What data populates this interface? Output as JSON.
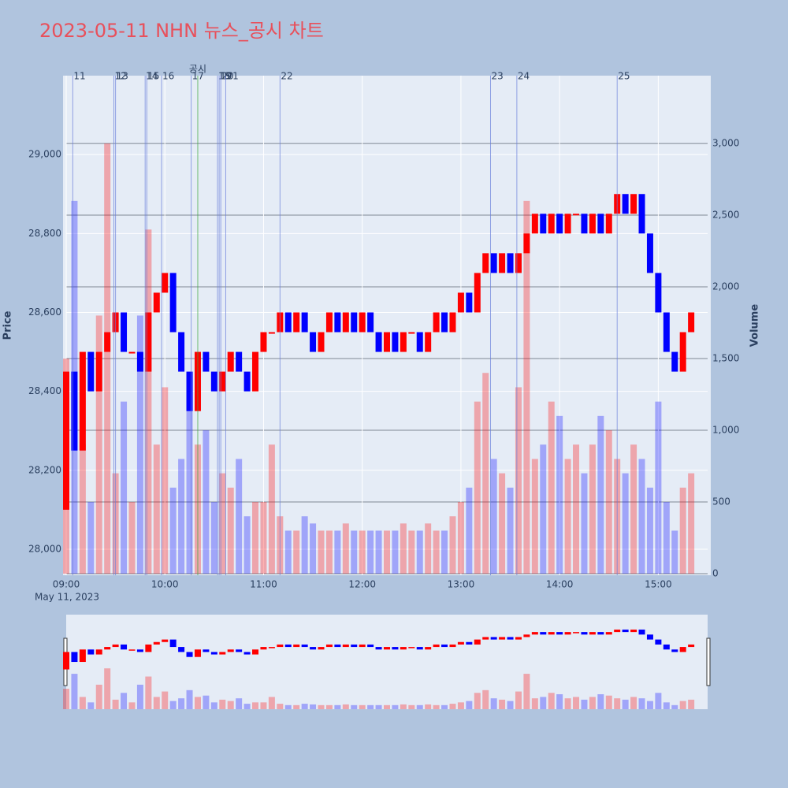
{
  "chart_data": {
    "type": "candlestick",
    "title": "2023-05-11 NHN 뉴스_공시 차트",
    "y_label": "Price",
    "y2_label": "Volume",
    "x_date_label": "May 11, 2023",
    "x": [
      "09:00",
      "09:05",
      "09:10",
      "09:15",
      "09:20",
      "09:25",
      "09:30",
      "09:35",
      "09:40",
      "09:45",
      "09:50",
      "09:55",
      "10:00",
      "10:05",
      "10:10",
      "10:15",
      "10:20",
      "10:25",
      "10:30",
      "10:35",
      "10:40",
      "10:45",
      "10:50",
      "10:55",
      "11:00",
      "11:05",
      "11:10",
      "11:15",
      "11:20",
      "11:25",
      "11:30",
      "11:35",
      "11:40",
      "11:45",
      "11:50",
      "11:55",
      "12:00",
      "12:05",
      "12:10",
      "12:15",
      "12:20",
      "12:25",
      "12:30",
      "12:35",
      "12:40",
      "12:45",
      "12:50",
      "12:55",
      "13:00",
      "13:05",
      "13:10",
      "13:15",
      "13:20",
      "13:25",
      "13:30",
      "13:35",
      "13:40",
      "13:45",
      "13:50",
      "13:55",
      "14:00",
      "14:05",
      "14:10",
      "14:15",
      "14:20",
      "14:25",
      "14:30",
      "14:35",
      "14:40",
      "14:45",
      "14:50",
      "14:55",
      "15:00",
      "15:05",
      "15:10",
      "15:15",
      "15:20"
    ],
    "open": [
      28100,
      28450,
      28250,
      28500,
      28400,
      28500,
      28550,
      28600,
      28500,
      28500,
      28450,
      28600,
      28650,
      28700,
      28550,
      28450,
      28350,
      28500,
      28450,
      28400,
      28450,
      28500,
      28450,
      28400,
      28500,
      28550,
      28550,
      28600,
      28550,
      28600,
      28550,
      28500,
      28550,
      28600,
      28550,
      28600,
      28550,
      28600,
      28550,
      28500,
      28550,
      28500,
      28550,
      28550,
      28500,
      28550,
      28600,
      28550,
      28600,
      28650,
      28600,
      28700,
      28750,
      28700,
      28750,
      28700,
      28750,
      28800,
      28850,
      28800,
      28850,
      28800,
      28850,
      28850,
      28800,
      28850,
      28800,
      28850,
      28900,
      28850,
      28900,
      28800,
      28700,
      28600,
      28500,
      28450,
      28550
    ],
    "close": [
      28450,
      28250,
      28500,
      28400,
      28500,
      28550,
      28600,
      28500,
      28500,
      28450,
      28600,
      28650,
      28700,
      28550,
      28450,
      28350,
      28500,
      28450,
      28400,
      28450,
      28500,
      28450,
      28400,
      28500,
      28550,
      28550,
      28600,
      28550,
      28600,
      28550,
      28500,
      28550,
      28600,
      28550,
      28600,
      28550,
      28600,
      28550,
      28500,
      28550,
      28500,
      28550,
      28550,
      28500,
      28550,
      28600,
      28550,
      28600,
      28650,
      28600,
      28700,
      28750,
      28700,
      28750,
      28700,
      28750,
      28800,
      28850,
      28800,
      28850,
      28800,
      28850,
      28850,
      28800,
      28850,
      28800,
      28850,
      28900,
      28850,
      28900,
      28800,
      28700,
      28600,
      28500,
      28450,
      28550,
      28600
    ],
    "volume": [
      1500,
      2600,
      900,
      500,
      1800,
      3000,
      700,
      1200,
      500,
      1800,
      2400,
      900,
      1300,
      600,
      800,
      1400,
      900,
      1000,
      500,
      700,
      600,
      800,
      400,
      500,
      500,
      900,
      400,
      300,
      300,
      400,
      350,
      300,
      300,
      300,
      350,
      300,
      300,
      300,
      300,
      300,
      300,
      350,
      300,
      300,
      350,
      300,
      300,
      400,
      500,
      600,
      1200,
      1400,
      800,
      700,
      600,
      1300,
      2600,
      800,
      900,
      1200,
      1100,
      800,
      900,
      700,
      900,
      1100,
      1000,
      800,
      700,
      900,
      800,
      600,
      1200,
      500,
      300,
      600,
      700
    ],
    "up_color": "#ff0000",
    "down_color": "#0000ff",
    "xlim": [
      "09:00",
      "15:30"
    ],
    "xticks": [
      "09:00",
      "10:00",
      "11:00",
      "12:00",
      "13:00",
      "14:00",
      "15:00"
    ],
    "ylim": [
      27934,
      29200
    ],
    "yticks": [
      {
        "value": 28000,
        "label": "28,000"
      },
      {
        "value": 28200,
        "label": "28,200"
      },
      {
        "value": 28400,
        "label": "28,400"
      },
      {
        "value": 28600,
        "label": "28,600"
      },
      {
        "value": 28800,
        "label": "28,800"
      },
      {
        "value": 29000,
        "label": "29,000"
      }
    ],
    "y2lim": [
      0,
      3473
    ],
    "y2ticks": [
      0,
      500,
      {
        "value": 1000,
        "label": "1,000"
      },
      {
        "value": 1500,
        "label": "1,500"
      },
      {
        "value": 2000,
        "label": "2,000"
      },
      {
        "value": 2500,
        "label": "2,500"
      },
      {
        "value": 3000,
        "label": "3,000"
      }
    ],
    "news": [
      {
        "label": "11",
        "time": "09:04",
        "color": "#6a7fdb"
      },
      {
        "label": "12",
        "time": "09:29",
        "color": "#6a7fdb"
      },
      {
        "label": "13",
        "time": "09:30",
        "color": "#6a7fdb"
      },
      {
        "label": "14",
        "time": "09:48",
        "color": "#6a7fdb"
      },
      {
        "label": "15",
        "time": "09:49",
        "color": "#6a7fdb"
      },
      {
        "label": "16",
        "time": "09:58",
        "color": "#6a7fdb"
      },
      {
        "label": "17",
        "time": "10:16",
        "color": "#6a7fdb"
      },
      {
        "label": "공시",
        "time": "10:20",
        "color": "#3aa83a"
      },
      {
        "label": "18",
        "time": "10:32",
        "color": "#6a7fdb"
      },
      {
        "label": "19",
        "time": "10:33",
        "color": "#6a7fdb"
      },
      {
        "label": "20",
        "time": "10:34",
        "color": "#6a7fdb"
      },
      {
        "label": "21",
        "time": "10:37",
        "color": "#6a7fdb"
      },
      {
        "label": "22",
        "time": "11:10",
        "color": "#6a7fdb"
      },
      {
        "label": "23",
        "time": "13:18",
        "color": "#6a7fdb"
      },
      {
        "label": "24",
        "time": "13:34",
        "color": "#6a7fdb"
      },
      {
        "label": "25",
        "time": "14:35",
        "color": "#6a7fdb"
      }
    ]
  }
}
